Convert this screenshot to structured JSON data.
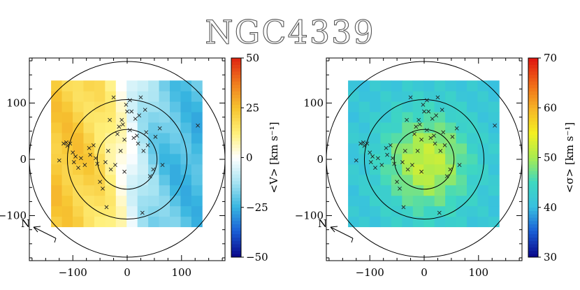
{
  "title": "NGC4339",
  "north_label": "N",
  "chart_data": [
    {
      "type": "heatmap",
      "name": "velocity-map",
      "xlim": [
        -180,
        180
      ],
      "ylim": [
        -180,
        180
      ],
      "xticks": [
        -100,
        0,
        100
      ],
      "yticks": [
        -100,
        0,
        100
      ],
      "xtick_labels": [
        "−100",
        "0",
        "100"
      ],
      "ytick_labels": [
        "−100",
        "0",
        "100"
      ],
      "field_x_range": [
        -140,
        138
      ],
      "field_y_range": [
        -120,
        140
      ],
      "rings_radius": [
        55,
        110,
        180
      ],
      "colorbar": {
        "range": [
          -50,
          50
        ],
        "ticks": [
          -50,
          -25,
          0,
          25,
          50
        ],
        "tick_labels": [
          "−50",
          "−25",
          "0",
          "25",
          "50"
        ],
        "label": "<V> [km s⁻¹]",
        "colors": [
          "#0a0a8c",
          "#1a5fd6",
          "#38b6e0",
          "#a8e4f2",
          "#ffffff",
          "#fff07a",
          "#f7c531",
          "#f07f20",
          "#e02a12"
        ]
      },
      "map_model": "rotation",
      "map_params": {
        "amplitude": 26,
        "scale": 60
      }
    },
    {
      "type": "heatmap",
      "name": "dispersion-map",
      "xlim": [
        -180,
        180
      ],
      "ylim": [
        -180,
        180
      ],
      "xticks": [
        -100,
        0,
        100
      ],
      "yticks": [
        -100,
        0,
        100
      ],
      "xtick_labels": [
        "−100",
        "0",
        "100"
      ],
      "ytick_labels": [
        "−100",
        "0",
        "100"
      ],
      "field_x_range": [
        -140,
        138
      ],
      "field_y_range": [
        -120,
        140
      ],
      "rings_radius": [
        55,
        110,
        180
      ],
      "colorbar": {
        "range": [
          30,
          70
        ],
        "ticks": [
          30,
          40,
          50,
          60,
          70
        ],
        "tick_labels": [
          "30",
          "40",
          "50",
          "60",
          "70"
        ],
        "label": "<σ> [km s⁻¹]",
        "colors": [
          "#0a0a8c",
          "#1a5fd6",
          "#38c0e0",
          "#3ed8c0",
          "#a8ec50",
          "#f4f020",
          "#f7b526",
          "#f06a18",
          "#e01a10"
        ]
      },
      "map_model": "dispersion",
      "map_params": {
        "center": 52,
        "outer": 41,
        "scale": 55
      }
    }
  ],
  "markers": [
    [
      -125,
      -2
    ],
    [
      -117,
      28
    ],
    [
      -112,
      30
    ],
    [
      -110,
      24
    ],
    [
      -105,
      28
    ],
    [
      -100,
      12
    ],
    [
      -95,
      5
    ],
    [
      -98,
      -5
    ],
    [
      -90,
      -15
    ],
    [
      -85,
      2
    ],
    [
      -78,
      -10
    ],
    [
      -70,
      20
    ],
    [
      -68,
      8
    ],
    [
      -62,
      25
    ],
    [
      -58,
      2
    ],
    [
      -55,
      -8
    ],
    [
      -50,
      -40
    ],
    [
      -45,
      -52
    ],
    [
      -40,
      -5
    ],
    [
      -38,
      -85
    ],
    [
      -35,
      15
    ],
    [
      -30,
      -18
    ],
    [
      -25,
      110
    ],
    [
      -22,
      -10
    ],
    [
      -18,
      45
    ],
    [
      -15,
      58
    ],
    [
      -10,
      70
    ],
    [
      -8,
      62
    ],
    [
      -5,
      35
    ],
    [
      -5,
      -22
    ],
    [
      -2,
      97
    ],
    [
      0,
      85
    ],
    [
      5,
      105
    ],
    [
      8,
      85
    ],
    [
      12,
      38
    ],
    [
      15,
      72
    ],
    [
      18,
      42
    ],
    [
      20,
      28
    ],
    [
      22,
      78
    ],
    [
      25,
      110
    ],
    [
      28,
      -95
    ],
    [
      30,
      15
    ],
    [
      33,
      88
    ],
    [
      35,
      48
    ],
    [
      38,
      25
    ],
    [
      42,
      -30
    ],
    [
      48,
      -18
    ],
    [
      52,
      40
    ],
    [
      60,
      55
    ],
    [
      65,
      -10
    ],
    [
      130,
      60
    ],
    [
      -32,
      70
    ],
    [
      5,
      52
    ],
    [
      -12,
      15
    ]
  ]
}
